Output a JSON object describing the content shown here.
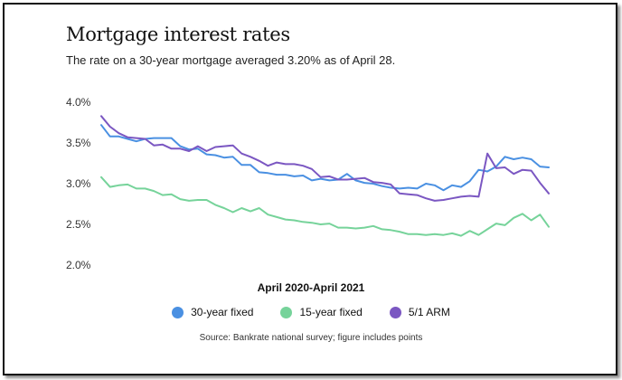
{
  "header": {
    "title": "Mortgage interest rates",
    "subtitle": "The rate on a 30-year mortgage averaged 3.20% as of April 28."
  },
  "footer": {
    "source": "Source: Bankrate national survey; figure includes points"
  },
  "chart_data": {
    "type": "line",
    "xlabel": "April 2020-April 2021",
    "ylabel": "",
    "ylim": [
      2.0,
      4.0
    ],
    "yticks": [
      "4.0%",
      "3.5%",
      "3.0%",
      "2.5%",
      "2.0%"
    ],
    "ytick_values": [
      4.0,
      3.5,
      3.0,
      2.5,
      2.0
    ],
    "grid": false,
    "legend_position": "bottom",
    "points_per_series": 52,
    "series": [
      {
        "name": "30-year fixed",
        "color": "#4a90e2",
        "values": [
          3.72,
          3.58,
          3.58,
          3.55,
          3.52,
          3.55,
          3.56,
          3.56,
          3.56,
          3.46,
          3.42,
          3.43,
          3.36,
          3.35,
          3.32,
          3.33,
          3.23,
          3.23,
          3.14,
          3.13,
          3.11,
          3.11,
          3.09,
          3.1,
          3.04,
          3.06,
          3.04,
          3.05,
          3.12,
          3.04,
          3.01,
          3.0,
          2.97,
          2.95,
          2.94,
          2.95,
          2.94,
          3.0,
          2.98,
          2.92,
          2.98,
          2.96,
          3.03,
          3.17,
          3.15,
          3.21,
          3.33,
          3.3,
          3.32,
          3.3,
          3.21,
          3.2
        ]
      },
      {
        "name": "15-year fixed",
        "color": "#76d39a",
        "values": [
          3.08,
          2.96,
          2.98,
          2.99,
          2.94,
          2.94,
          2.91,
          2.86,
          2.87,
          2.81,
          2.79,
          2.8,
          2.8,
          2.74,
          2.7,
          2.65,
          2.7,
          2.66,
          2.7,
          2.62,
          2.59,
          2.56,
          2.55,
          2.53,
          2.52,
          2.5,
          2.51,
          2.46,
          2.46,
          2.45,
          2.46,
          2.48,
          2.44,
          2.43,
          2.41,
          2.38,
          2.38,
          2.37,
          2.38,
          2.37,
          2.39,
          2.36,
          2.42,
          2.37,
          2.44,
          2.51,
          2.49,
          2.58,
          2.63,
          2.55,
          2.62,
          2.47
        ]
      },
      {
        "name": "5/1 ARM",
        "color": "#7b57c2",
        "values": [
          3.83,
          3.7,
          3.62,
          3.57,
          3.56,
          3.55,
          3.47,
          3.48,
          3.43,
          3.43,
          3.4,
          3.46,
          3.4,
          3.45,
          3.46,
          3.47,
          3.37,
          3.33,
          3.28,
          3.22,
          3.26,
          3.24,
          3.24,
          3.22,
          3.18,
          3.08,
          3.09,
          3.05,
          3.05,
          3.06,
          3.07,
          3.02,
          3.01,
          2.99,
          2.88,
          2.87,
          2.86,
          2.82,
          2.79,
          2.8,
          2.82,
          2.84,
          2.85,
          2.84,
          3.37,
          3.19,
          3.2,
          3.12,
          3.17,
          3.16,
          3.01,
          2.88
        ]
      }
    ]
  }
}
